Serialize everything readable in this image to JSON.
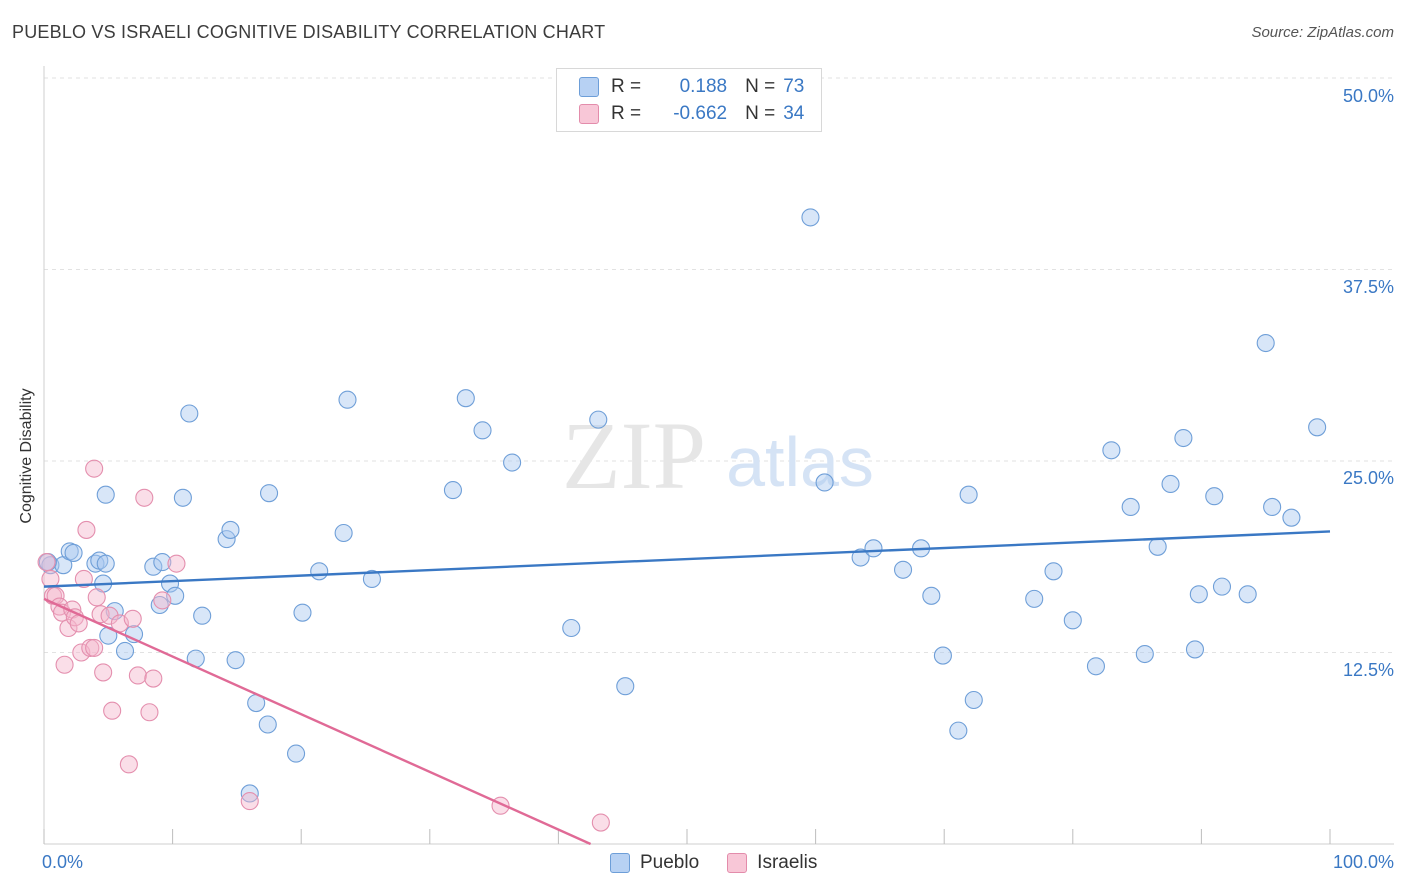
{
  "title": "PUEBLO VS ISRAELI COGNITIVE DISABILITY CORRELATION CHART",
  "source": "Source: ZipAtlas.com",
  "colors": {
    "pueblo": "#3a78c4",
    "pueblo_fill": "#a9c8f0",
    "israelis": "#e06a96",
    "israelis_fill": "#f4b6cb",
    "axis_text": "#3a78c4"
  },
  "legend": {
    "rows": [
      {
        "r_label": "R =",
        "r_value": "0.188",
        "n_label": "N =",
        "n_value": "73"
      },
      {
        "r_label": "R =",
        "r_value": "-0.662",
        "n_label": "N =",
        "n_value": "34"
      }
    ]
  },
  "watermark": {
    "zip": "ZIP",
    "atlas": "atlas"
  },
  "chart_data": {
    "type": "scatter",
    "title": "PUEBLO VS ISRAELI COGNITIVE DISABILITY CORRELATION CHART",
    "xlabel": "",
    "ylabel": "Cognitive Disability",
    "xlim": [
      0,
      100
    ],
    "ylim": [
      0,
      50
    ],
    "x_tick_labels": [
      "0.0%",
      "100.0%"
    ],
    "y_ticks": [
      12.5,
      25.0,
      37.5,
      50.0
    ],
    "y_tick_labels": [
      "12.5%",
      "25.0%",
      "37.5%",
      "50.0%"
    ],
    "series": [
      {
        "name": "Pueblo",
        "trend": {
          "x": [
            0,
            100
          ],
          "y": [
            16.8,
            20.4
          ]
        },
        "points": [
          [
            0.5,
            18.2
          ],
          [
            1.5,
            18.2
          ],
          [
            2.0,
            19.1
          ],
          [
            2.3,
            19.0
          ],
          [
            4.0,
            18.3
          ],
          [
            4.3,
            18.5
          ],
          [
            4.6,
            17.0
          ],
          [
            4.8,
            18.3
          ],
          [
            4.8,
            22.8
          ],
          [
            5.0,
            13.6
          ],
          [
            5.5,
            15.2
          ],
          [
            6.3,
            12.6
          ],
          [
            7.0,
            13.7
          ],
          [
            8.5,
            18.1
          ],
          [
            9.0,
            15.6
          ],
          [
            9.2,
            18.4
          ],
          [
            9.8,
            17.0
          ],
          [
            10.2,
            16.2
          ],
          [
            10.8,
            22.6
          ],
          [
            11.3,
            28.1
          ],
          [
            11.8,
            12.1
          ],
          [
            12.3,
            14.9
          ],
          [
            14.2,
            19.9
          ],
          [
            14.5,
            20.5
          ],
          [
            14.9,
            12.0
          ],
          [
            16.0,
            3.3
          ],
          [
            16.5,
            9.2
          ],
          [
            17.4,
            7.8
          ],
          [
            17.5,
            22.9
          ],
          [
            19.6,
            5.9
          ],
          [
            20.1,
            15.1
          ],
          [
            21.4,
            17.8
          ],
          [
            23.3,
            20.3
          ],
          [
            23.6,
            29.0
          ],
          [
            25.5,
            17.3
          ],
          [
            31.8,
            23.1
          ],
          [
            32.8,
            29.1
          ],
          [
            34.1,
            27.0
          ],
          [
            36.4,
            24.9
          ],
          [
            41.0,
            14.1
          ],
          [
            43.1,
            27.7
          ],
          [
            45.2,
            10.3
          ],
          [
            59.6,
            40.9
          ],
          [
            60.7,
            23.6
          ],
          [
            63.5,
            18.7
          ],
          [
            64.5,
            19.3
          ],
          [
            66.8,
            17.9
          ],
          [
            68.2,
            19.3
          ],
          [
            69.0,
            16.2
          ],
          [
            69.9,
            12.3
          ],
          [
            71.1,
            7.4
          ],
          [
            71.9,
            22.8
          ],
          [
            72.3,
            9.4
          ],
          [
            77.0,
            16.0
          ],
          [
            78.5,
            17.8
          ],
          [
            80.0,
            14.6
          ],
          [
            81.8,
            11.6
          ],
          [
            83.0,
            25.7
          ],
          [
            84.5,
            22.0
          ],
          [
            85.6,
            12.4
          ],
          [
            86.6,
            19.4
          ],
          [
            87.6,
            23.5
          ],
          [
            88.6,
            26.5
          ],
          [
            89.5,
            12.7
          ],
          [
            89.8,
            16.3
          ],
          [
            91.0,
            22.7
          ],
          [
            91.6,
            16.8
          ],
          [
            93.6,
            16.3
          ],
          [
            95.0,
            32.7
          ],
          [
            95.5,
            22.0
          ],
          [
            97.0,
            21.3
          ],
          [
            99.0,
            27.2
          ],
          [
            0.3,
            18.4
          ]
        ]
      },
      {
        "name": "Israelis",
        "trend": {
          "x": [
            0,
            42.5
          ],
          "y": [
            16.0,
            0
          ]
        },
        "points": [
          [
            0.2,
            18.4
          ],
          [
            0.5,
            17.3
          ],
          [
            0.7,
            16.2
          ],
          [
            0.9,
            16.2
          ],
          [
            1.2,
            15.5
          ],
          [
            1.4,
            15.1
          ],
          [
            1.6,
            11.7
          ],
          [
            1.9,
            14.1
          ],
          [
            2.2,
            15.3
          ],
          [
            2.4,
            14.8
          ],
          [
            2.7,
            14.4
          ],
          [
            2.9,
            12.5
          ],
          [
            3.1,
            17.3
          ],
          [
            3.3,
            20.5
          ],
          [
            3.6,
            12.8
          ],
          [
            3.9,
            12.8
          ],
          [
            4.1,
            16.1
          ],
          [
            4.4,
            15.0
          ],
          [
            4.6,
            11.2
          ],
          [
            5.1,
            14.9
          ],
          [
            5.3,
            8.7
          ],
          [
            5.9,
            14.4
          ],
          [
            6.6,
            5.2
          ],
          [
            6.9,
            14.7
          ],
          [
            7.3,
            11.0
          ],
          [
            7.8,
            22.6
          ],
          [
            8.2,
            8.6
          ],
          [
            8.5,
            10.8
          ],
          [
            9.2,
            15.9
          ],
          [
            10.3,
            18.3
          ],
          [
            3.9,
            24.5
          ],
          [
            16.0,
            2.8
          ],
          [
            35.5,
            2.5
          ],
          [
            43.3,
            1.4
          ]
        ]
      }
    ]
  },
  "bottom_legend": {
    "pueblo": "Pueblo",
    "israelis": "Israelis"
  }
}
